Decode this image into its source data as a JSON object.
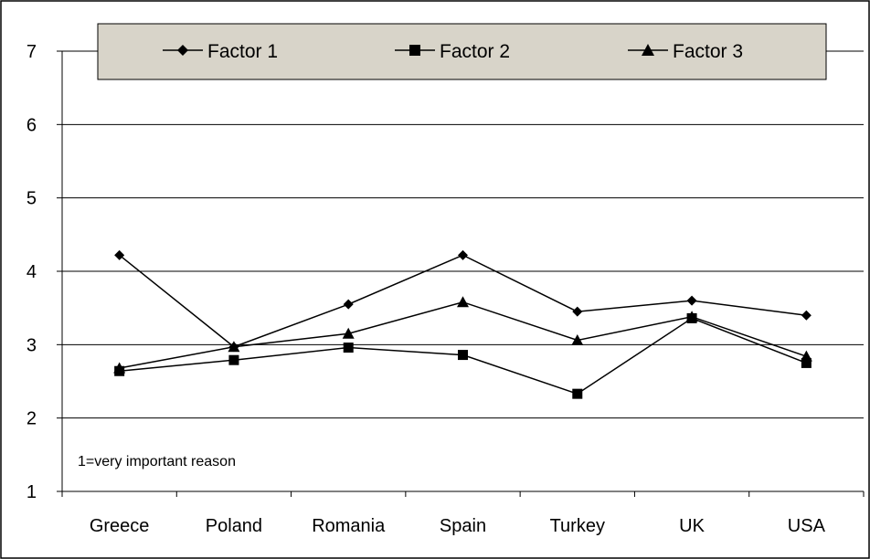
{
  "chart_data": {
    "type": "line",
    "categories": [
      "Greece",
      "Poland",
      "Romania",
      "Spain",
      "Turkey",
      "UK",
      "USA"
    ],
    "series": [
      {
        "name": "Factor 1",
        "marker": "diamond",
        "values": [
          4.22,
          2.97,
          3.55,
          4.22,
          3.45,
          3.6,
          3.4
        ]
      },
      {
        "name": "Factor 2",
        "marker": "square",
        "values": [
          2.64,
          2.79,
          2.96,
          2.86,
          2.33,
          3.36,
          2.75
        ]
      },
      {
        "name": "Factor 3",
        "marker": "triangle",
        "values": [
          2.68,
          2.97,
          3.15,
          3.58,
          3.06,
          3.38,
          2.84
        ]
      }
    ],
    "yticks": [
      1,
      2,
      3,
      4,
      5,
      6,
      7
    ],
    "ylim": [
      1,
      7
    ],
    "grid": true,
    "annotation": "1=very important reason",
    "legend": {
      "placement": "top",
      "background": "#d8d4c9"
    },
    "colors": {
      "line": "#000000",
      "grid": "#000000",
      "frame": "#000000"
    }
  }
}
